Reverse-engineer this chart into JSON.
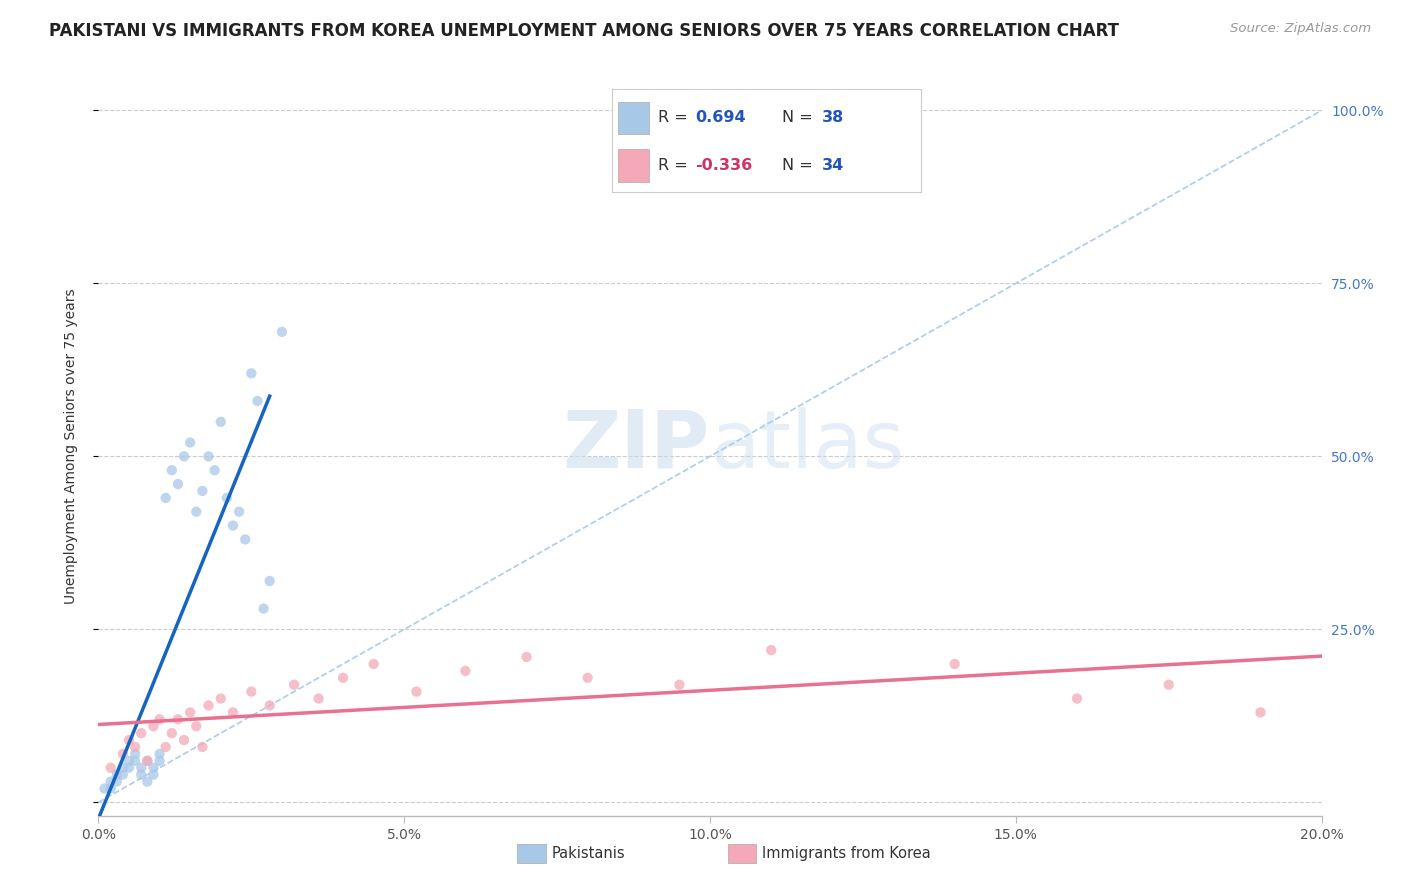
{
  "title": "PAKISTANI VS IMMIGRANTS FROM KOREA UNEMPLOYMENT AMONG SENIORS OVER 75 YEARS CORRELATION CHART",
  "source": "Source: ZipAtlas.com",
  "ylabel": "Unemployment Among Seniors over 75 years",
  "xlim": [
    0.0,
    0.2
  ],
  "ylim": [
    -0.02,
    1.05
  ],
  "r_pakistani": 0.694,
  "n_pakistani": 38,
  "r_korea": -0.336,
  "n_korea": 34,
  "pakistani_color": "#A8C8E8",
  "korea_color": "#F4A8B8",
  "pakistani_line_color": "#1565C0",
  "korea_line_color": "#E87090",
  "diag_color": "#AACCEE",
  "grid_color": "#CCCCCC",
  "background_color": "#FFFFFF",
  "pak_x": [
    0.001,
    0.002,
    0.002,
    0.003,
    0.003,
    0.004,
    0.004,
    0.005,
    0.005,
    0.006,
    0.006,
    0.007,
    0.007,
    0.008,
    0.008,
    0.009,
    0.009,
    0.01,
    0.01,
    0.011,
    0.012,
    0.013,
    0.014,
    0.015,
    0.016,
    0.017,
    0.018,
    0.019,
    0.02,
    0.021,
    0.022,
    0.023,
    0.024,
    0.025,
    0.026,
    0.027,
    0.028,
    0.03
  ],
  "pak_y": [
    0.02,
    0.02,
    0.03,
    0.03,
    0.04,
    0.04,
    0.05,
    0.05,
    0.06,
    0.06,
    0.07,
    0.05,
    0.04,
    0.06,
    0.03,
    0.05,
    0.04,
    0.07,
    0.06,
    0.44,
    0.48,
    0.46,
    0.5,
    0.52,
    0.42,
    0.45,
    0.5,
    0.48,
    0.55,
    0.44,
    0.4,
    0.42,
    0.38,
    0.62,
    0.58,
    0.28,
    0.32,
    0.68
  ],
  "kor_x": [
    0.002,
    0.004,
    0.005,
    0.006,
    0.007,
    0.008,
    0.009,
    0.01,
    0.011,
    0.012,
    0.013,
    0.014,
    0.015,
    0.016,
    0.017,
    0.018,
    0.02,
    0.022,
    0.025,
    0.028,
    0.032,
    0.036,
    0.04,
    0.045,
    0.052,
    0.06,
    0.07,
    0.08,
    0.095,
    0.11,
    0.14,
    0.16,
    0.175,
    0.19
  ],
  "kor_y": [
    0.05,
    0.07,
    0.09,
    0.08,
    0.1,
    0.06,
    0.11,
    0.12,
    0.08,
    0.1,
    0.12,
    0.09,
    0.13,
    0.11,
    0.08,
    0.14,
    0.15,
    0.13,
    0.16,
    0.14,
    0.17,
    0.15,
    0.18,
    0.2,
    0.16,
    0.19,
    0.21,
    0.18,
    0.17,
    0.22,
    0.2,
    0.15,
    0.17,
    0.13
  ],
  "ytick_vals": [
    0.0,
    0.25,
    0.5,
    0.75,
    1.0
  ],
  "ytick_labels": [
    "",
    "25.0%",
    "50.0%",
    "75.0%",
    "100.0%"
  ],
  "xtick_vals": [
    0.0,
    0.05,
    0.1,
    0.15,
    0.2
  ],
  "xtick_labels": [
    "0.0%",
    "5.0%",
    "10.0%",
    "15.0%",
    "20.0%"
  ]
}
